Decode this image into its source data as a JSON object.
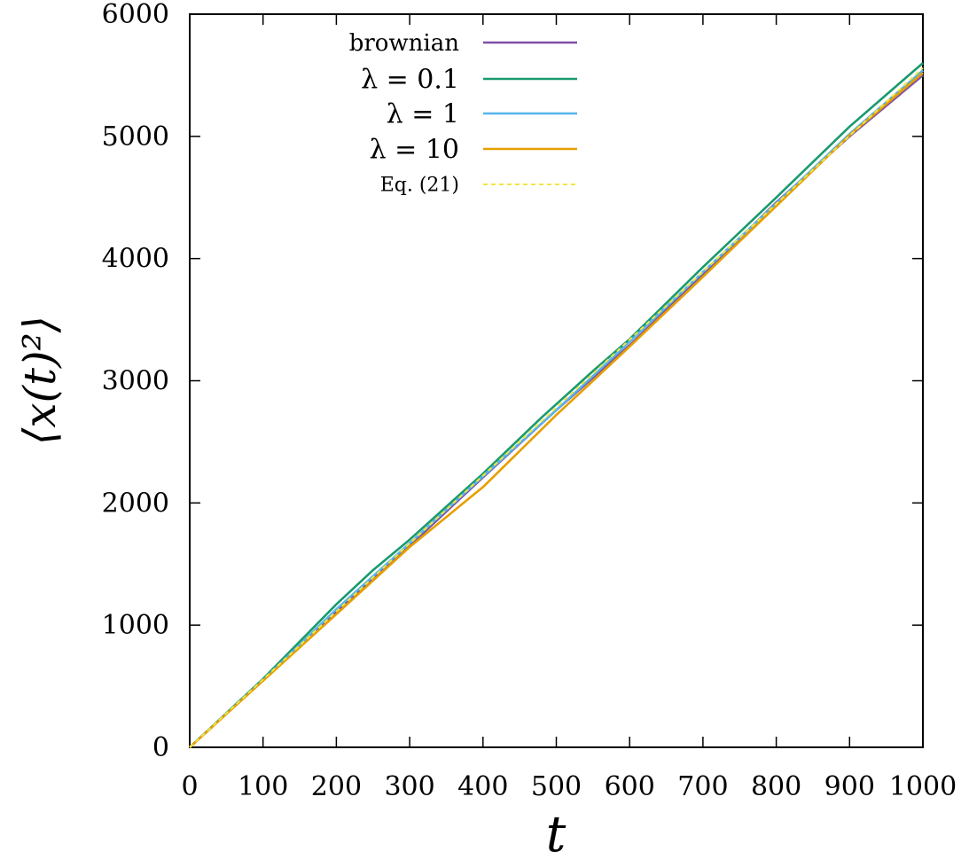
{
  "chart_data": {
    "type": "line",
    "xlabel": "t",
    "ylabel": "⟨x(t)²⟩",
    "xlim": [
      0,
      1000
    ],
    "ylim": [
      0,
      6000
    ],
    "xticks": [
      "0",
      "100",
      "200",
      "300",
      "400",
      "500",
      "600",
      "700",
      "800",
      "900",
      "1000"
    ],
    "yticks": [
      "0",
      "1000",
      "2000",
      "3000",
      "4000",
      "5000",
      "6000"
    ],
    "grid": false,
    "legend_position": "top-left",
    "series": [
      {
        "name": "brownian",
        "color": "#7e4fa6",
        "dashed": false,
        "x": [
          0,
          100,
          200,
          300,
          400,
          500,
          600,
          700,
          800,
          900,
          1000
        ],
        "y": [
          0,
          550,
          1110,
          1650,
          2210,
          2760,
          3290,
          3870,
          4460,
          5000,
          5500
        ]
      },
      {
        "name": "λ = 0.1",
        "color": "#1a9a6e",
        "dashed": false,
        "x": [
          0,
          100,
          200,
          250,
          300,
          400,
          480,
          550,
          600,
          700,
          800,
          900,
          1000
        ],
        "y": [
          0,
          560,
          1170,
          1450,
          1700,
          2240,
          2700,
          3080,
          3340,
          3930,
          4500,
          5080,
          5600
        ]
      },
      {
        "name": "λ = 1",
        "color": "#56b4e9",
        "dashed": false,
        "x": [
          0,
          100,
          200,
          300,
          400,
          500,
          600,
          700,
          800,
          900,
          1000
        ],
        "y": [
          0,
          550,
          1130,
          1670,
          2220,
          2760,
          3320,
          3890,
          4450,
          5020,
          5540
        ]
      },
      {
        "name": "λ = 10",
        "color": "#e69f00",
        "dashed": false,
        "x": [
          0,
          100,
          200,
          300,
          400,
          500,
          550,
          600,
          700,
          800,
          900,
          1000
        ],
        "y": [
          0,
          545,
          1090,
          1640,
          2130,
          2720,
          3000,
          3280,
          3850,
          4430,
          5010,
          5520
        ]
      },
      {
        "name": "Eq. (21)",
        "color": "#f0e442",
        "dashed": true,
        "x": [
          0,
          1000
        ],
        "y": [
          0,
          5560
        ]
      }
    ]
  }
}
